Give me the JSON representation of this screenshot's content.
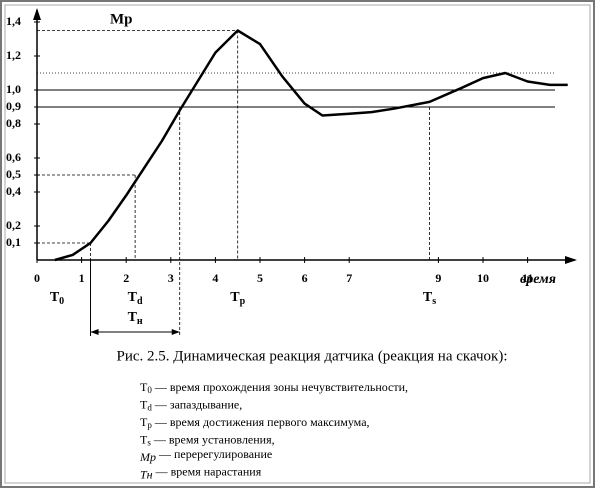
{
  "chart_data": {
    "type": "line",
    "title": "Mp",
    "x_label": "время",
    "x": [
      0.4,
      0.8,
      1.2,
      1.6,
      2.0,
      2.4,
      2.8,
      3.2,
      3.6,
      4.0,
      4.5,
      5.0,
      5.5,
      6.0,
      6.4,
      7.0,
      7.5,
      8.0,
      8.8,
      9.5,
      10.0,
      10.5,
      11.0,
      11.5,
      11.9
    ],
    "values": [
      0,
      0.03,
      0.1,
      0.23,
      0.38,
      0.54,
      0.7,
      0.88,
      1.05,
      1.22,
      1.35,
      1.27,
      1.08,
      0.92,
      0.85,
      0.86,
      0.87,
      0.89,
      0.93,
      1.01,
      1.07,
      1.1,
      1.05,
      1.03,
      1.03
    ],
    "color": "#000000",
    "xlim": [
      0,
      12
    ],
    "ylim": [
      0,
      1.5
    ],
    "xticks": [
      0,
      1,
      2,
      3,
      4,
      5,
      6,
      7,
      9,
      10,
      11
    ],
    "yticks": [
      {
        "value": 0.1,
        "label": "0,1"
      },
      {
        "value": 0.2,
        "label": "0,2"
      },
      {
        "value": 0.4,
        "label": "0,4"
      },
      {
        "value": 0.5,
        "label": "0,5"
      },
      {
        "value": 0.6,
        "label": "0,6"
      },
      {
        "value": 0.8,
        "label": "0,8"
      },
      {
        "value": 0.9,
        "label": "0,9"
      },
      {
        "value": 1.0,
        "label": "1,0"
      },
      {
        "value": 1.2,
        "label": "1,2"
      },
      {
        "value": 1.4,
        "label": "1,4"
      }
    ],
    "solid_levels": [
      0.9,
      1.0
    ],
    "dotted_levels": [
      1.1
    ],
    "markers": [
      {
        "base": "T",
        "sub": "0",
        "t": 1.2,
        "level": 0.1
      },
      {
        "base": "T",
        "sub": "d",
        "t": 2.2,
        "level": 0.5
      },
      {
        "base": "T",
        "sub": "p",
        "t": 4.5,
        "level": 1.35
      },
      {
        "base": "T",
        "sub": "s",
        "t": 8.8,
        "level": 0.9
      }
    ],
    "rise": {
      "base": "T",
      "sub": "н",
      "start": 1.2,
      "end": 3.2,
      "level": 0.9
    },
    "caption": "Рис. 2.5. Динамическая реакция датчика (реакция на скачок):",
    "notes": [
      {
        "base": "T",
        "sub": "0",
        "text": " — время прохождения зоны нечувствительности,"
      },
      {
        "base": "T",
        "sub": "d",
        "text": " — запаздывание,"
      },
      {
        "base": "T",
        "sub": "p",
        "text": " — время достижения первого максимума,"
      },
      {
        "base": "T",
        "sub": "s",
        "text": " — время установления,"
      },
      {
        "base": "Mp",
        "sub": "",
        "text": " — перерегулирование"
      },
      {
        "base": "Tн",
        "sub": "",
        "text": "  — время нарастания"
      }
    ]
  }
}
